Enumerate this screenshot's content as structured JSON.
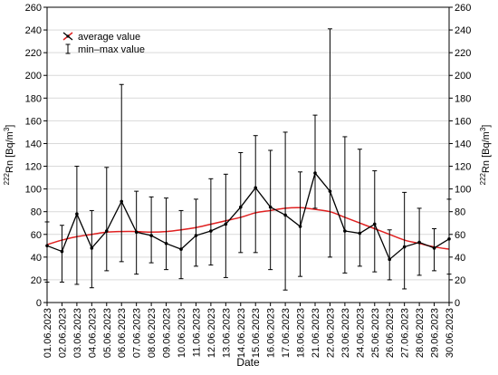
{
  "chart_data": {
    "type": "line",
    "xlabel": "Date",
    "ylabel": "222Rn [Bq/m3]",
    "ylabel_isotope": "222",
    "ylabel_main": "Rn [Bq/m",
    "ylabel_power": "3",
    "ylabel_close": "]",
    "ylim": [
      0,
      260
    ],
    "yticks": [
      0,
      20,
      40,
      60,
      80,
      100,
      120,
      140,
      160,
      180,
      200,
      220,
      240,
      260
    ],
    "grid": true,
    "legend_position": "top-left",
    "legend": {
      "average_label": "average value",
      "minmax_label": "min–max value"
    },
    "colors": {
      "average": "#000000",
      "trend": "#e02020",
      "grid": "#d9d9d9"
    },
    "categories": [
      "01.06.2023",
      "02.06.2023",
      "03.06.2023",
      "04.06.2023",
      "05.06.2023",
      "06.06.2023",
      "07.06.2023",
      "08.06.2023",
      "09.06.2023",
      "10.06.2023",
      "11.06.2023",
      "12.06.2023",
      "13.06.2023",
      "14.06.2023",
      "15.06.2023",
      "16.06.2023",
      "17.06.2023",
      "18.06.2023",
      "21.06.2023",
      "22.06.2023",
      "23.06.2023",
      "24.06.2023",
      "25.06.2023",
      "26.06.2023",
      "27.06.2023",
      "28.06.2023",
      "29.06.2023",
      "30.06.2023"
    ],
    "series": [
      {
        "type": "line-with-error-bars",
        "values": [
          50,
          45,
          78,
          48,
          63,
          89,
          62,
          59,
          52,
          47,
          59,
          63,
          69,
          84,
          101,
          84,
          77,
          67,
          114,
          98,
          63,
          61,
          69,
          38,
          49,
          53,
          48,
          56
        ],
        "min": [
          18,
          18,
          16,
          13,
          28,
          36,
          25,
          35,
          29,
          21,
          32,
          33,
          22,
          44,
          44,
          29,
          11,
          23,
          83,
          40,
          26,
          32,
          27,
          20,
          12,
          24,
          28,
          25
        ],
        "max": [
          71,
          68,
          120,
          81,
          119,
          192,
          98,
          93,
          92,
          81,
          91,
          109,
          113,
          132,
          147,
          134,
          150,
          115,
          165,
          241,
          146,
          135,
          116,
          64,
          97,
          83,
          65,
          91
        ]
      },
      {
        "type": "trend",
        "values": [
          51,
          55,
          58,
          60,
          62,
          62.5,
          62.5,
          62,
          62.5,
          64,
          66,
          69,
          72,
          75,
          79,
          81,
          83,
          83.5,
          82,
          80,
          75,
          70,
          65,
          60,
          55,
          52,
          49,
          47
        ]
      }
    ]
  }
}
